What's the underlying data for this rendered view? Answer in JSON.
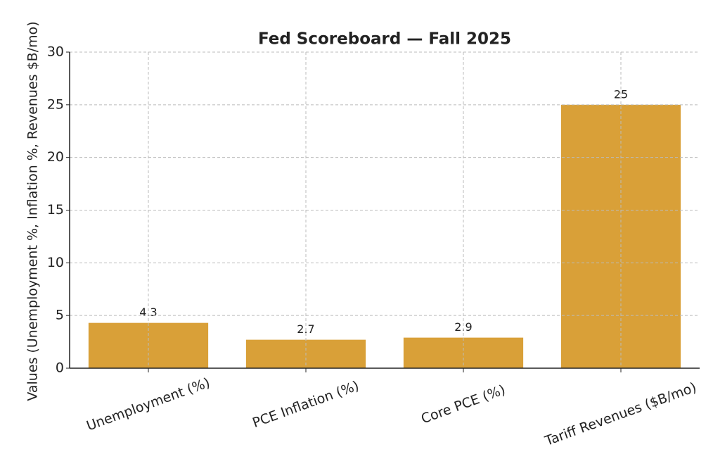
{
  "chart_data": {
    "type": "bar",
    "title": "Fed Scoreboard — Fall 2025",
    "y_label": "Values (Unemployment %, Inflation %, Revenues $B/mo)",
    "categories": [
      "Unemployment (%)",
      "PCE Inflation (%)",
      "Core PCE (%)",
      "Tariff Revenues ($B/mo)"
    ],
    "values": [
      4.3,
      2.7,
      2.9,
      25
    ],
    "color": "#d9a038",
    "ylim": [
      0,
      30
    ],
    "yticks": [
      0,
      5,
      10,
      15,
      20,
      25,
      30
    ],
    "grid": true
  }
}
